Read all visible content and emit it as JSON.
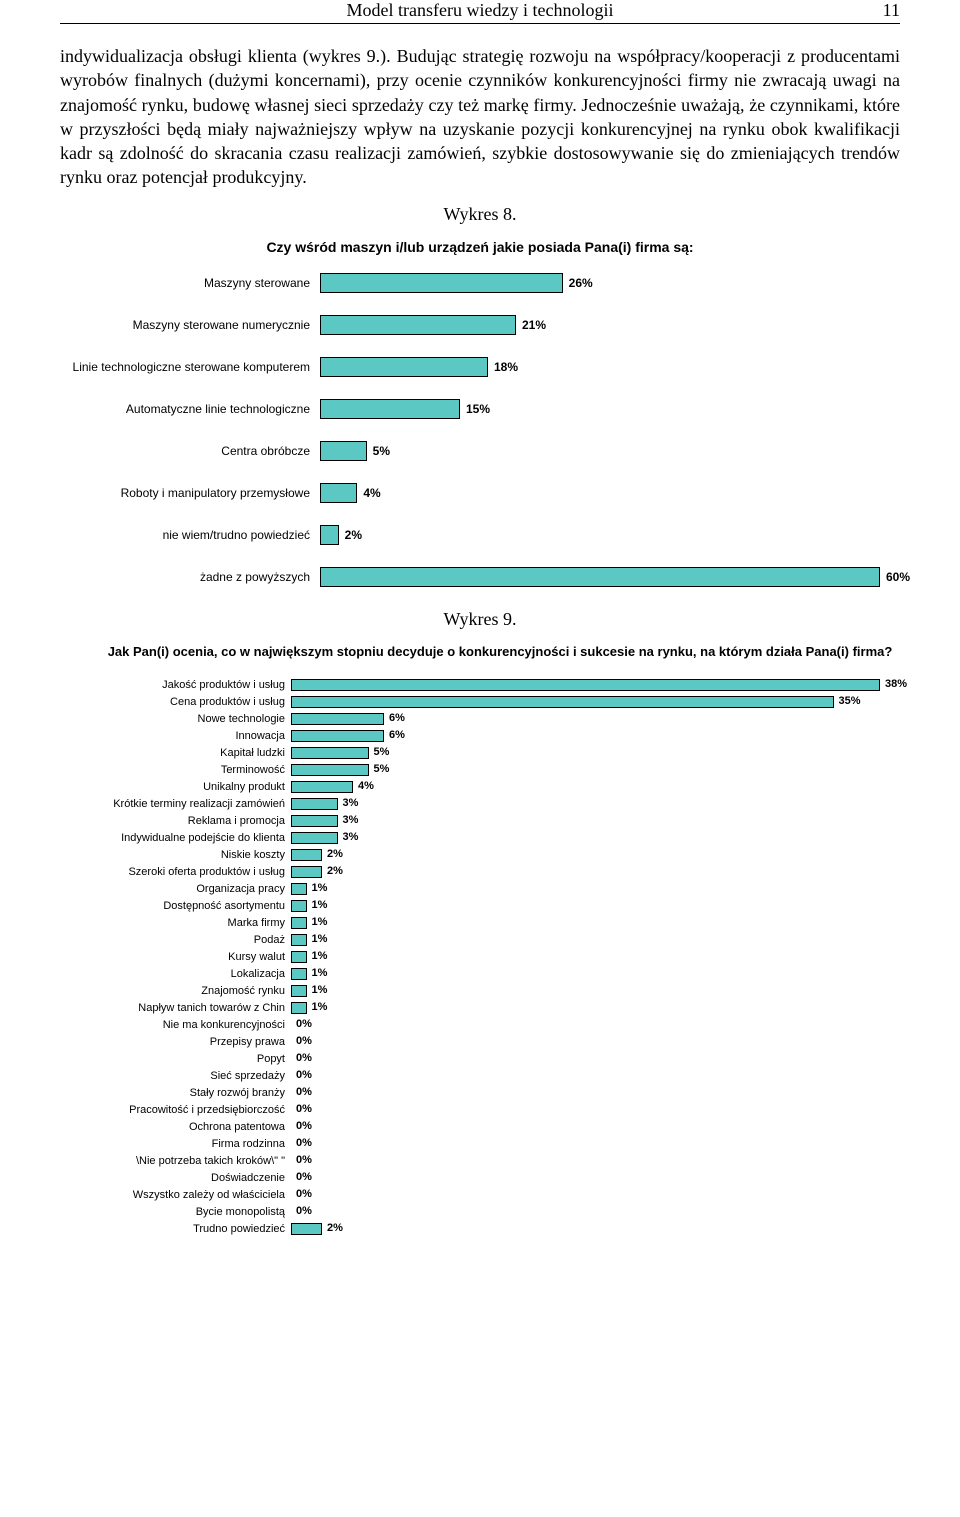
{
  "header": {
    "title": "Model transferu wiedzy i technologii",
    "page": "11"
  },
  "paragraph": "indywidualizacja obsługi klienta (wykres 9.). Budując strategię rozwoju na współpracy/kooperacji z producentami wyrobów finalnych (dużymi koncernami), przy ocenie czynników konkurencyjności firmy nie zwracają uwagi na znajomość rynku, budowę własnej sieci sprzedaży czy też markę firmy. Jednocześnie uważają, że czynnikami, które w przyszłości będą miały najważniejszy wpływ na uzyskanie pozycji konkurencyjnej na rynku obok kwalifikacji kadr są zdolność do skracania czasu realizacji zamówień, szybkie dostosowywanie się do zmieniających trendów rynku oraz potencjał produkcyjny.",
  "chart8": {
    "caption": "Wykres 8.",
    "title": "Czy wśród maszyn i/lub urządzeń jakie posiada Pana(i) firma są:",
    "type": "bar",
    "bar_color": "#5bc8c4",
    "border_color": "#000000",
    "value_color": "#000000",
    "label_fontsize": 12,
    "value_fontsize": 12,
    "max_pct": 60,
    "items": [
      {
        "label": "Maszyny sterowane",
        "value": 26
      },
      {
        "label": "Maszyny sterowane numerycznie",
        "value": 21
      },
      {
        "label": "Linie technologiczne sterowane komputerem",
        "value": 18
      },
      {
        "label": "Automatyczne linie technologiczne",
        "value": 15
      },
      {
        "label": "Centra obróbcze",
        "value": 5
      },
      {
        "label": "Roboty i manipulatory przemysłowe",
        "value": 4
      },
      {
        "label": "nie wiem/trudno powiedzieć",
        "value": 2
      },
      {
        "label": "żadne z powyższych",
        "value": 60
      }
    ]
  },
  "chart9": {
    "caption": "Wykres 9.",
    "title": "Jak Pan(i) ocenia, co w największym stopniu decyduje o konkurencyjności i sukcesie na rynku, na którym działa Pana(i) firma?",
    "type": "bar",
    "bar_color": "#5bc8c4",
    "border_color": "#000000",
    "value_color": "#000000",
    "label_fontsize": 11,
    "value_fontsize": 11,
    "max_pct": 40,
    "items": [
      {
        "label": "Jakość produktów i usług",
        "value": 38
      },
      {
        "label": "Cena produktów i usług",
        "value": 35
      },
      {
        "label": "Nowe technologie",
        "value": 6
      },
      {
        "label": "Innowacja",
        "value": 6
      },
      {
        "label": "Kapitał ludzki",
        "value": 5
      },
      {
        "label": "Terminowość",
        "value": 5
      },
      {
        "label": "Unikalny produkt",
        "value": 4
      },
      {
        "label": "Krótkie terminy realizacji zamówień",
        "value": 3
      },
      {
        "label": "Reklama i promocja",
        "value": 3
      },
      {
        "label": "Indywidualne podejście do klienta",
        "value": 3
      },
      {
        "label": "Niskie koszty",
        "value": 2
      },
      {
        "label": "Szeroki oferta produktów i usług",
        "value": 2
      },
      {
        "label": "Organizacja pracy",
        "value": 1
      },
      {
        "label": "Dostępność asortymentu",
        "value": 1
      },
      {
        "label": "Marka firmy",
        "value": 1
      },
      {
        "label": "Podaż",
        "value": 1
      },
      {
        "label": "Kursy walut",
        "value": 1
      },
      {
        "label": "Lokalizacja",
        "value": 1
      },
      {
        "label": "Znajomość rynku",
        "value": 1
      },
      {
        "label": "Napływ tanich towarów z Chin",
        "value": 1
      },
      {
        "label": "Nie ma konkurencyjności",
        "value": 0
      },
      {
        "label": "Przepisy prawa",
        "value": 0
      },
      {
        "label": "Popyt",
        "value": 0
      },
      {
        "label": "Sieć sprzedaży",
        "value": 0
      },
      {
        "label": "Stały rozwój branży",
        "value": 0
      },
      {
        "label": "Pracowitość i przedsiębiorczość",
        "value": 0
      },
      {
        "label": "Ochrona patentowa",
        "value": 0
      },
      {
        "label": "Firma rodzinna",
        "value": 0
      },
      {
        "label": "\\Nie potrzeba takich kroków\\\" \"",
        "value": 0
      },
      {
        "label": "Doświadczenie",
        "value": 0
      },
      {
        "label": "Wszystko zależy od właściciela",
        "value": 0
      },
      {
        "label": "Bycie monopolistą",
        "value": 0
      },
      {
        "label": "Trudno powiedzieć",
        "value": 2
      }
    ]
  }
}
